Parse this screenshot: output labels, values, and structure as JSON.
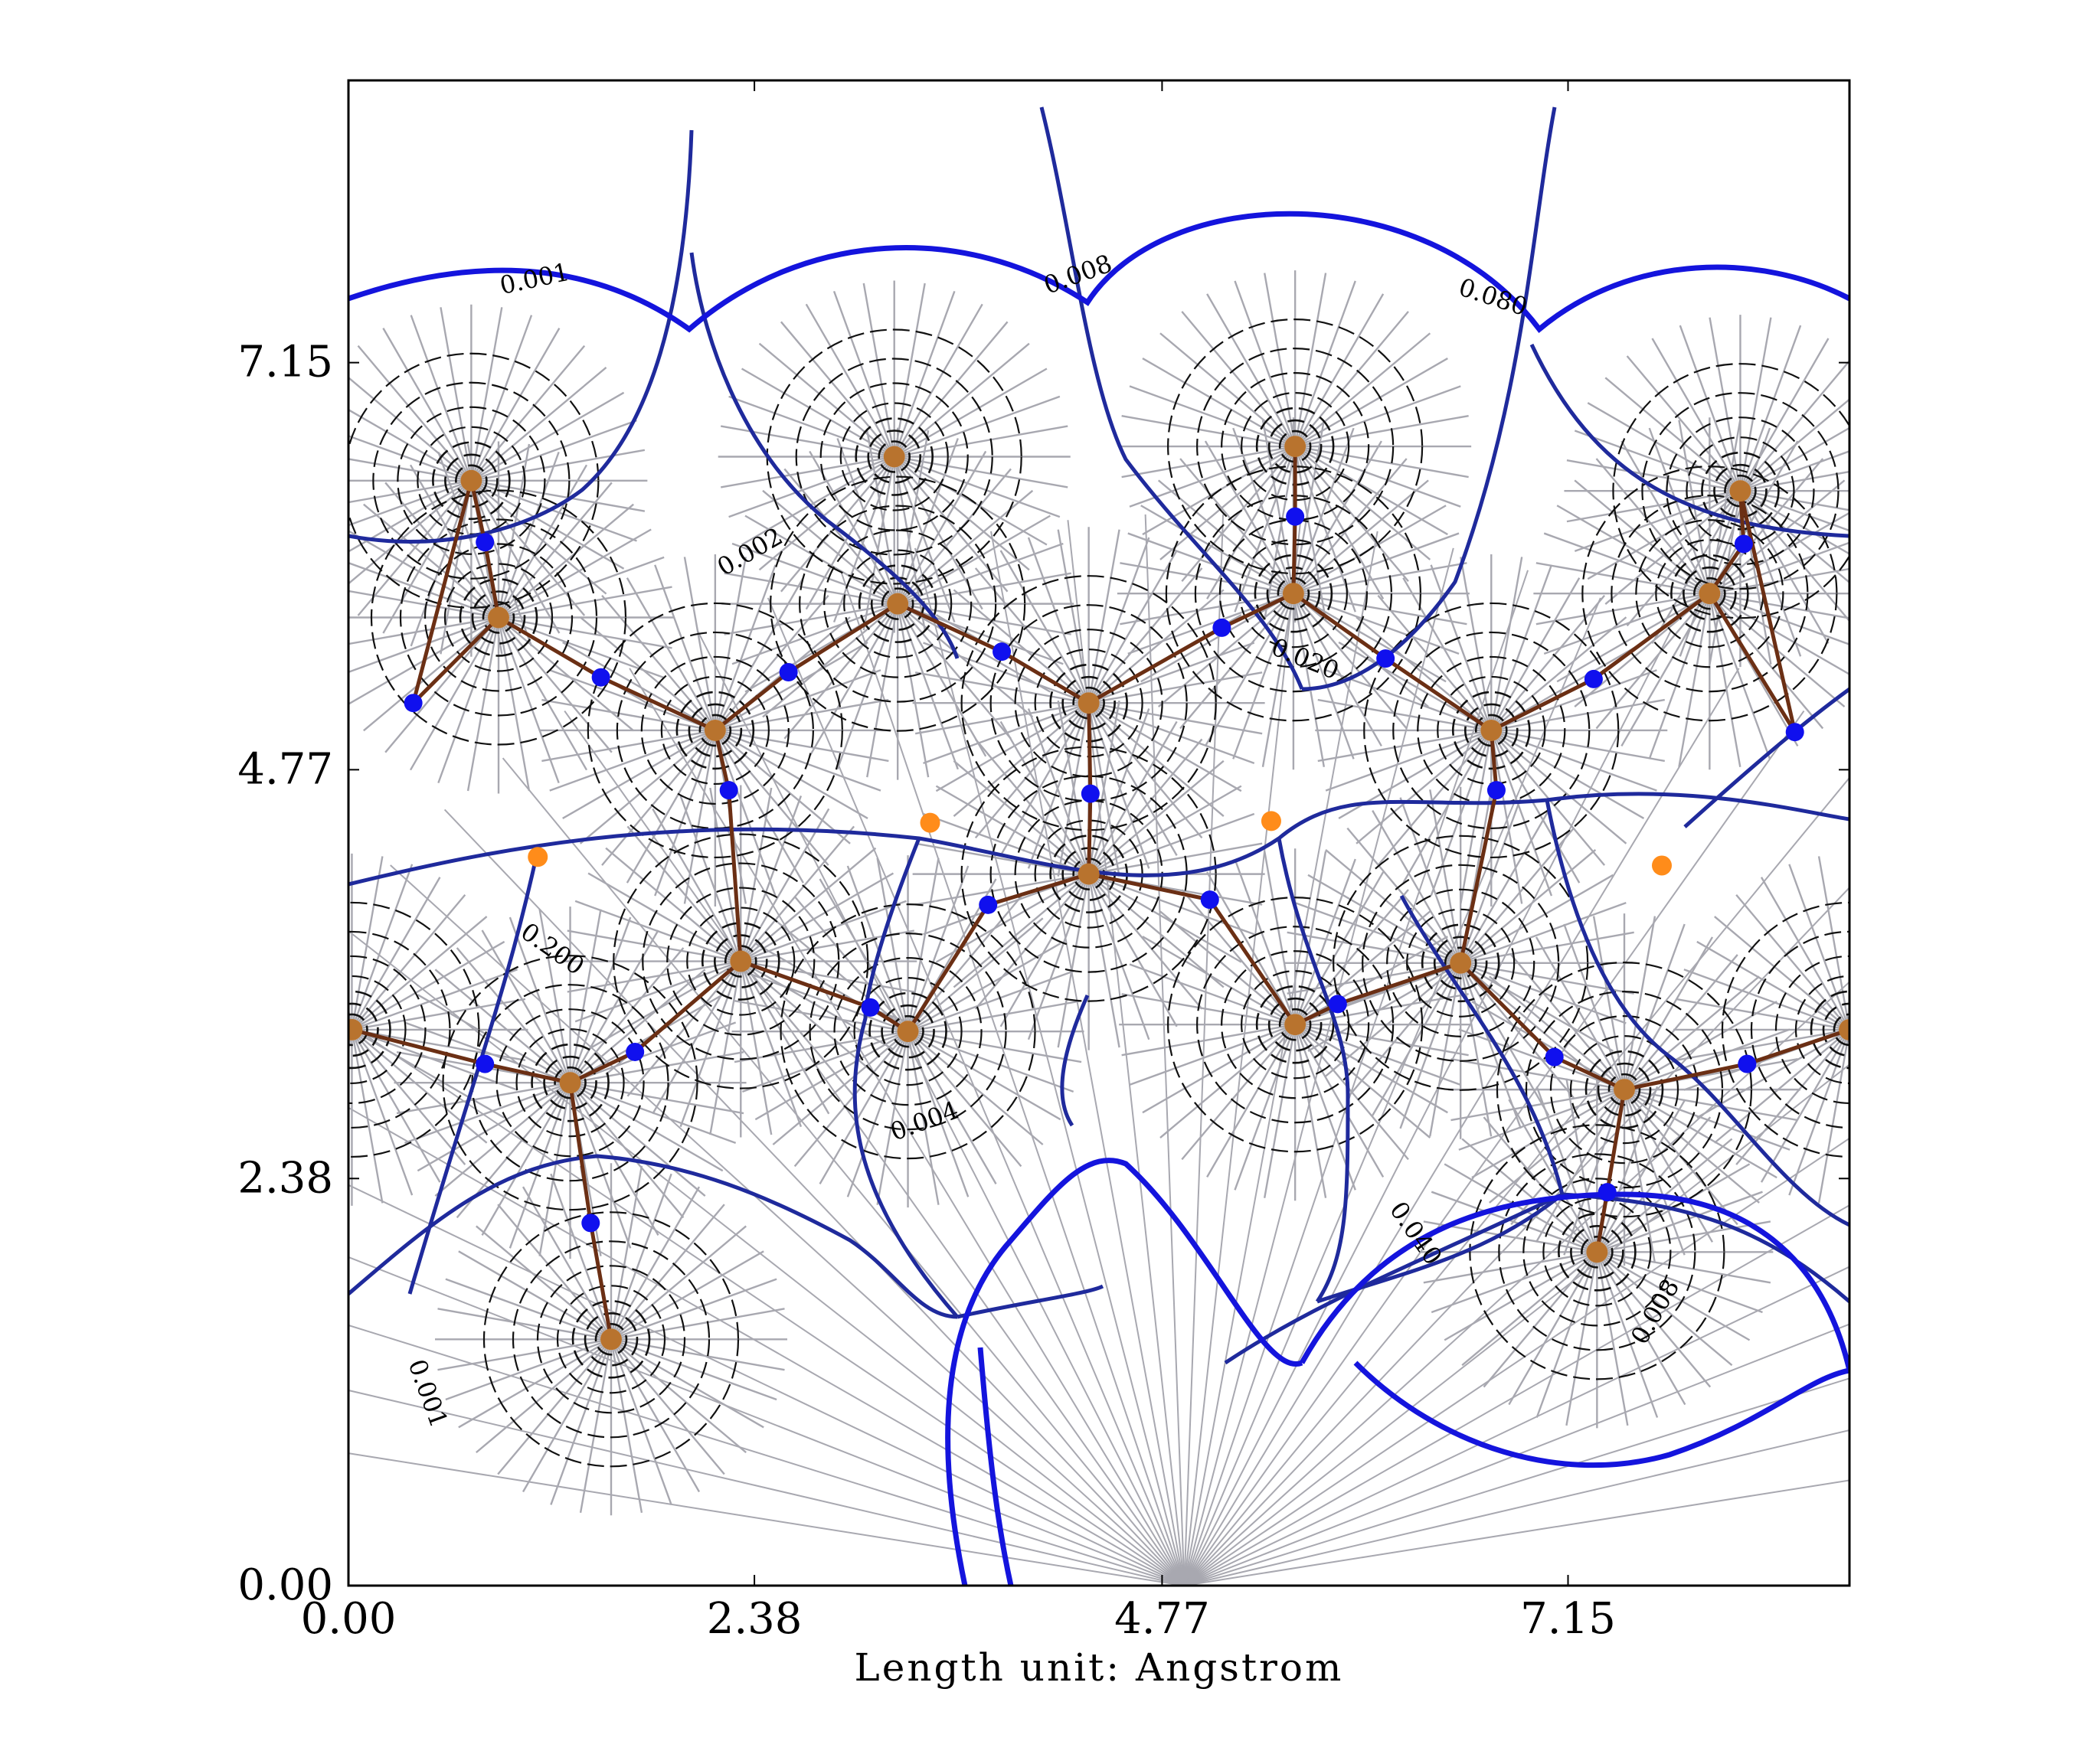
{
  "chart_data": {
    "type": "contour",
    "xlabel": "Length unit: Angstrom",
    "xlim": [
      0.0,
      8.8
    ],
    "ylim": [
      0.0,
      8.8
    ],
    "x_ticks": [
      "0.00",
      "2.38",
      "4.77",
      "7.15"
    ],
    "y_ticks": [
      "0.00",
      "2.38",
      "4.77",
      "7.15"
    ],
    "x_tick_values": [
      0.0,
      2.38,
      4.77,
      7.15
    ],
    "y_tick_values": [
      0.0,
      2.38,
      4.77,
      7.15
    ],
    "contour_levels": [
      "0.001",
      "0.002",
      "0.004",
      "0.008",
      "0.020",
      "0.040",
      "0.080",
      "0.200"
    ],
    "colors": {
      "contour": "#111111",
      "gradient_lines": "#a8a8b0",
      "bond_paths": "#6b2f14",
      "zero_flux_surfaces": "#1f2a9c",
      "iso_surface": "#1414dd",
      "nuclear_cp": "#b8732e",
      "bond_cp": "#1010ee",
      "ring_cp": "#ff8c1a"
    },
    "nuclei": [
      [
        0.72,
        6.46
      ],
      [
        0.88,
        5.66
      ],
      [
        2.15,
        5.0
      ],
      [
        3.2,
        6.6
      ],
      [
        3.22,
        5.74
      ],
      [
        4.34,
        5.16
      ],
      [
        5.55,
        6.66
      ],
      [
        5.54,
        5.8
      ],
      [
        6.7,
        5.0
      ],
      [
        7.98,
        5.8
      ],
      [
        8.16,
        6.4
      ],
      [
        2.3,
        3.65
      ],
      [
        1.3,
        2.94
      ],
      [
        0.02,
        3.25
      ],
      [
        3.28,
        3.24
      ],
      [
        4.34,
        4.16
      ],
      [
        5.55,
        3.28
      ],
      [
        6.52,
        3.64
      ],
      [
        7.48,
        2.9
      ],
      [
        7.32,
        1.95
      ],
      [
        1.54,
        1.44
      ],
      [
        8.8,
        3.25
      ]
    ],
    "bond_cps": [
      [
        0.8,
        6.1
      ],
      [
        0.38,
        5.16
      ],
      [
        1.48,
        5.31
      ],
      [
        2.58,
        5.34
      ],
      [
        3.83,
        5.46
      ],
      [
        4.35,
        4.63
      ],
      [
        5.12,
        5.6
      ],
      [
        5.55,
        6.25
      ],
      [
        6.08,
        5.42
      ],
      [
        7.3,
        5.3
      ],
      [
        8.18,
        6.09
      ],
      [
        8.48,
        4.99
      ],
      [
        2.23,
        4.65
      ],
      [
        3.06,
        3.38
      ],
      [
        3.75,
        3.98
      ],
      [
        5.05,
        4.01
      ],
      [
        5.8,
        3.4
      ],
      [
        6.73,
        4.65
      ],
      [
        7.07,
        3.09
      ],
      [
        8.2,
        3.05
      ],
      [
        0.8,
        3.05
      ],
      [
        1.68,
        3.12
      ],
      [
        1.42,
        2.12
      ],
      [
        7.38,
        2.3
      ]
    ],
    "ring_cps": [
      [
        1.11,
        4.26
      ],
      [
        3.41,
        4.46
      ],
      [
        5.41,
        4.47
      ],
      [
        7.7,
        4.21
      ]
    ]
  }
}
